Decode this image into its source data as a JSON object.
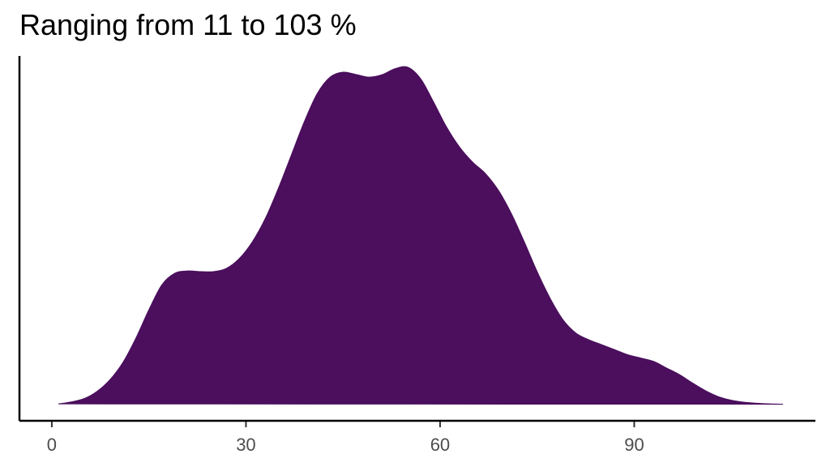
{
  "chart_data": {
    "type": "area",
    "title": "Ranging from 11 to 103 %",
    "xlabel": "",
    "ylabel": "",
    "xlim": [
      -5,
      118
    ],
    "ylim": [
      0,
      1
    ],
    "x_ticks": [
      0,
      30,
      60,
      90
    ],
    "grid": false,
    "legend": "none",
    "fill_color": "#4B0F5D",
    "axis_color": "#000000",
    "series": [
      {
        "x": [
          1,
          3,
          5,
          7,
          9,
          11,
          13,
          15,
          17,
          19,
          21,
          23,
          25,
          27,
          29,
          31,
          33,
          35,
          37,
          39,
          41,
          43,
          45,
          47,
          49,
          51,
          53,
          55,
          57,
          59,
          61,
          63,
          65,
          67,
          69,
          71,
          73,
          75,
          77,
          79,
          81,
          83,
          85,
          87,
          89,
          91,
          93,
          95,
          97,
          99,
          101,
          103,
          105,
          107,
          109,
          111,
          113
        ],
        "y": [
          0.002,
          0.008,
          0.018,
          0.04,
          0.075,
          0.127,
          0.2,
          0.285,
          0.36,
          0.395,
          0.402,
          0.4,
          0.4,
          0.41,
          0.44,
          0.49,
          0.56,
          0.65,
          0.75,
          0.85,
          0.935,
          0.985,
          1.0,
          0.993,
          0.985,
          0.992,
          1.01,
          1.015,
          0.98,
          0.91,
          0.835,
          0.775,
          0.73,
          0.695,
          0.645,
          0.575,
          0.49,
          0.4,
          0.32,
          0.255,
          0.215,
          0.195,
          0.18,
          0.165,
          0.15,
          0.14,
          0.13,
          0.11,
          0.09,
          0.065,
          0.042,
          0.024,
          0.013,
          0.007,
          0.004,
          0.002,
          0.001
        ]
      }
    ]
  }
}
